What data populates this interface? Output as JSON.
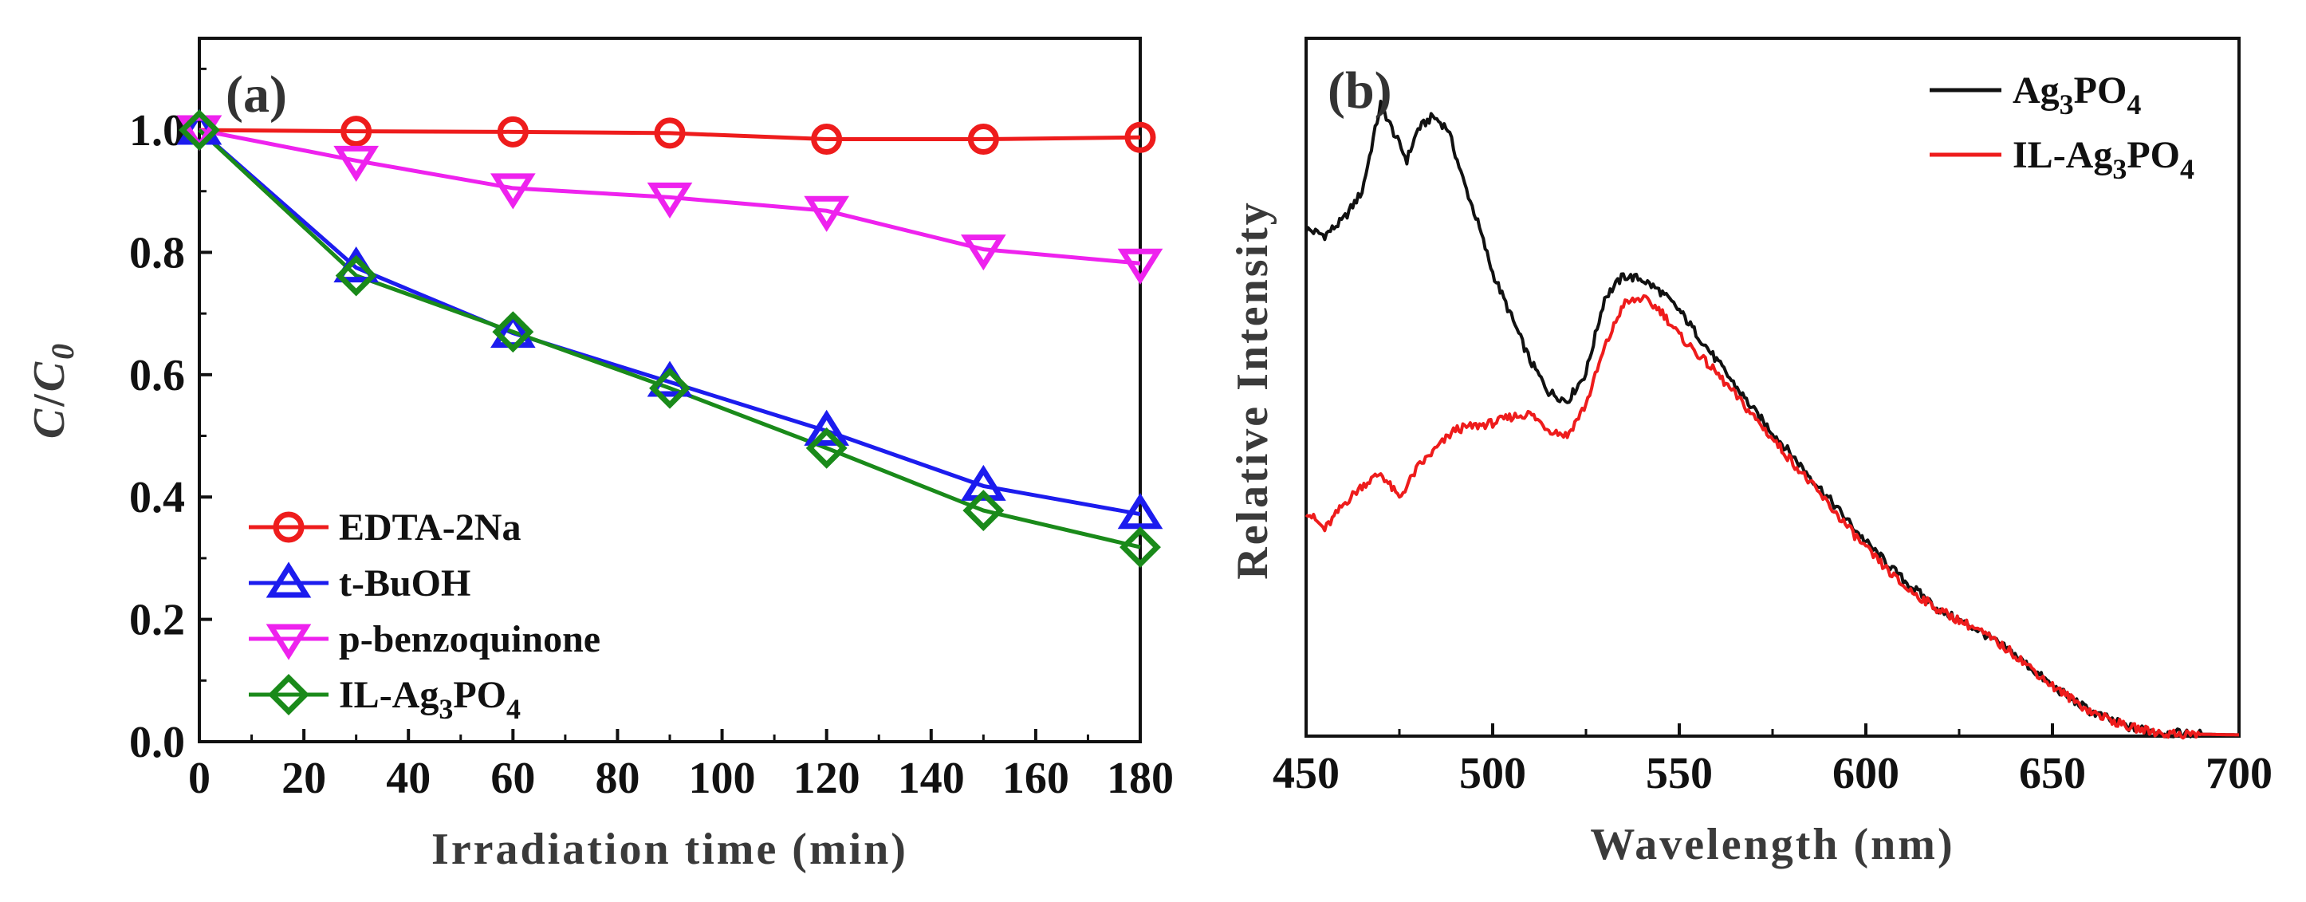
{
  "chart_data": [
    {
      "panel": "(a)",
      "type": "line",
      "xlabel": "Irradiation time (min)",
      "ylabel_main": "C",
      "ylabel_mid": "/",
      "ylabel_C": "C",
      "ylabel_sub": "0",
      "xlim": [
        0,
        180
      ],
      "ylim": [
        0,
        1.15
      ],
      "xticks": [
        0,
        20,
        40,
        60,
        80,
        100,
        120,
        140,
        160,
        180
      ],
      "xtick_labels": [
        "0",
        "20",
        "40",
        "60",
        "80",
        "100",
        "120",
        "140",
        "160",
        "180"
      ],
      "yticks": [
        0,
        0.2,
        0.4,
        0.6,
        0.8,
        1.0
      ],
      "ytick_labels": [
        "0.0",
        "0.2",
        "0.4",
        "0.6",
        "0.8",
        "1.0"
      ],
      "legend_position": "bottom-left",
      "series": [
        {
          "name": "EDTA-2Na",
          "label": "EDTA-2Na",
          "marker": "circle",
          "color": "#ee1c1c",
          "x": [
            0,
            30,
            60,
            90,
            120,
            150,
            180
          ],
          "y": [
            1.0,
            0.998,
            0.997,
            0.995,
            0.985,
            0.985,
            0.988
          ]
        },
        {
          "name": "t-BuOH",
          "label": "t-BuOH",
          "marker": "triangle-up",
          "color": "#1c1cee",
          "x": [
            0,
            30,
            60,
            90,
            120,
            150,
            180
          ],
          "y": [
            1.0,
            0.775,
            0.668,
            0.588,
            0.508,
            0.418,
            0.372
          ]
        },
        {
          "name": "p-benzoquinone",
          "label": "p-benzoquinone",
          "marker": "triangle-down",
          "color": "#ee22ee",
          "x": [
            0,
            30,
            60,
            90,
            120,
            150,
            180
          ],
          "y": [
            1.0,
            0.95,
            0.905,
            0.89,
            0.868,
            0.805,
            0.782
          ]
        },
        {
          "name": "IL-Ag3PO4",
          "label_main": "IL-Ag",
          "label_sub1": "3",
          "label_mid": "PO",
          "label_sub2": "4",
          "marker": "diamond",
          "color": "#1a8a1a",
          "x": [
            0,
            30,
            60,
            90,
            120,
            150,
            180
          ],
          "y": [
            1.0,
            0.762,
            0.67,
            0.578,
            0.48,
            0.378,
            0.318
          ]
        }
      ]
    },
    {
      "panel": "(b)",
      "type": "line",
      "xlabel": "Wavelength (nm)",
      "ylabel": "Relative Intensity",
      "xlim": [
        450,
        700
      ],
      "ylim": [
        0,
        100
      ],
      "xticks": [
        450,
        500,
        550,
        600,
        650,
        700
      ],
      "xtick_labels": [
        "450",
        "500",
        "550",
        "600",
        "650",
        "700"
      ],
      "legend_position": "top-right",
      "series": [
        {
          "name": "Ag3PO4",
          "label_main": "Ag",
          "label_sub1": "3",
          "label_mid": "PO",
          "label_sub2": "4",
          "color": "#111111",
          "x": [
            450,
            455,
            460,
            465,
            470,
            473,
            477,
            480,
            484,
            488,
            492,
            496,
            500,
            505,
            510,
            515,
            520,
            525,
            530,
            535,
            540,
            545,
            550,
            555,
            560,
            570,
            580,
            590,
            600,
            610,
            620,
            630,
            635,
            640,
            650,
            660,
            670,
            680,
            690,
            700
          ],
          "y": [
            81,
            80,
            82.5,
            87,
            101,
            97,
            92,
            97,
            99,
            97,
            89,
            82,
            74,
            67,
            60,
            55,
            53.5,
            58,
            70,
            73.5,
            73,
            71,
            68,
            64,
            60,
            52,
            45,
            38,
            31,
            25,
            20,
            17,
            15,
            13,
            8,
            4,
            1.5,
            0.5,
            0.3,
            0.2
          ]
        },
        {
          "name": "IL-Ag3PO4",
          "label_main": "IL-Ag",
          "label_sub1": "3",
          "label_mid": "PO",
          "label_sub2": "4",
          "color": "#ee1c1c",
          "x": [
            450,
            455,
            460,
            465,
            470,
            475,
            480,
            490,
            500,
            505,
            510,
            515,
            520,
            525,
            530,
            535,
            540,
            545,
            550,
            555,
            560,
            570,
            580,
            590,
            600,
            610,
            620,
            630,
            635,
            640,
            650,
            660,
            670,
            680,
            690,
            700
          ],
          "y": [
            36,
            33,
            37,
            40,
            42,
            38,
            43,
            49,
            50,
            51,
            51.5,
            49,
            48,
            53,
            62,
            69,
            70,
            68,
            64,
            61,
            58,
            51,
            44,
            37,
            30,
            24,
            20,
            17,
            15,
            13,
            8,
            4,
            1.5,
            0.4,
            0.3,
            0.2
          ]
        }
      ]
    }
  ]
}
